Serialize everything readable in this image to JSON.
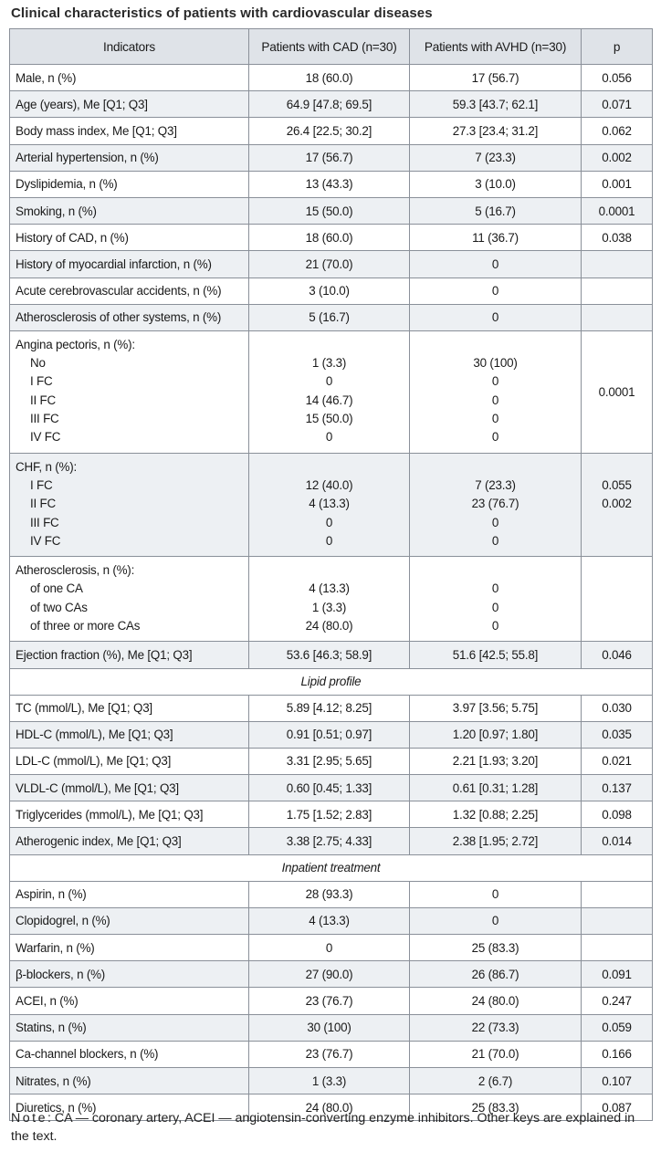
{
  "caption": "Clinical characteristics of patients with cardiovascular diseases",
  "headers": {
    "indicators": "Indicators",
    "cad": "Patients with CAD (n=30)",
    "avhd": "Patients with AVHD (n=30)",
    "p": "p"
  },
  "rows": [
    {
      "label": "Male, n (%)",
      "cad": "18 (60.0)",
      "avhd": "17 (56.7)",
      "p": "0.056"
    },
    {
      "label": "Age (years), Me [Q1; Q3]",
      "cad": "64.9 [47.8; 69.5]",
      "avhd": "59.3 [43.7; 62.1]",
      "p": "0.071"
    },
    {
      "label": "Body mass index, Me [Q1; Q3]",
      "cad": "26.4 [22.5; 30.2]",
      "avhd": "27.3 [23.4; 31.2]",
      "p": "0.062"
    },
    {
      "label": "Arterial hypertension, n (%)",
      "cad": "17 (56.7)",
      "avhd": "7 (23.3)",
      "p": "0.002"
    },
    {
      "label": "Dyslipidemia, n (%)",
      "cad": "13 (43.3)",
      "avhd": "3 (10.0)",
      "p": "0.001"
    },
    {
      "label": "Smoking, n (%)",
      "cad": "15 (50.0)",
      "avhd": "5 (16.7)",
      "p": "0.0001"
    },
    {
      "label": "History of CAD, n (%)",
      "cad": "18 (60.0)",
      "avhd": "11 (36.7)",
      "p": "0.038"
    },
    {
      "label": "History of myocardial infarction, n (%)",
      "cad": "21 (70.0)",
      "avhd": "0",
      "p": ""
    },
    {
      "label": "Acute cerebrovascular accidents, n (%)",
      "cad": "3 (10.0)",
      "avhd": "0",
      "p": ""
    },
    {
      "label": "Atherosclerosis of other systems, n (%)",
      "cad": "5 (16.7)",
      "avhd": "0",
      "p": ""
    }
  ],
  "angina": {
    "title": "Angina pectoris, n (%):",
    "items": [
      {
        "label": "No",
        "cad": "1 (3.3)",
        "avhd": "30 (100)"
      },
      {
        "label": "I FC",
        "cad": "0",
        "avhd": "0"
      },
      {
        "label": "II FC",
        "cad": "14 (46.7)",
        "avhd": "0"
      },
      {
        "label": "III FC",
        "cad": "15 (50.0)",
        "avhd": "0"
      },
      {
        "label": "IV FC",
        "cad": "0",
        "avhd": "0"
      }
    ],
    "p": "0.0001"
  },
  "chf": {
    "title": "CHF, n (%):",
    "items": [
      {
        "label": "I FC",
        "cad": "12 (40.0)",
        "avhd": "7 (23.3)"
      },
      {
        "label": "II FC",
        "cad": "4 (13.3)",
        "avhd": "23 (76.7)"
      },
      {
        "label": "III FC",
        "cad": "0",
        "avhd": "0"
      },
      {
        "label": "IV FC",
        "cad": "0",
        "avhd": "0"
      }
    ],
    "p1": "0.055",
    "p2": "0.002"
  },
  "athero": {
    "title": "Atherosclerosis, n (%):",
    "items": [
      {
        "label": "of one CA",
        "cad": "4 (13.3)",
        "avhd": "0"
      },
      {
        "label": "of two CAs",
        "cad": "1 (3.3)",
        "avhd": "0"
      },
      {
        "label": "of three or more CAs",
        "cad": "24 (80.0)",
        "avhd": "0"
      }
    ]
  },
  "ef": {
    "label": "Ejection fraction (%), Me [Q1; Q3]",
    "cad": "53.6 [46.3; 58.9]",
    "avhd": "51.6 [42.5; 55.8]",
    "p": "0.046"
  },
  "lipid_title": "Lipid profile",
  "lipid_rows": [
    {
      "label": "TC (mmol/L), Me [Q1; Q3]",
      "cad": "5.89 [4.12; 8.25]",
      "avhd": "3.97 [3.56; 5.75]",
      "p": "0.030"
    },
    {
      "label": "HDL-C (mmol/L), Me [Q1; Q3]",
      "cad": "0.91 [0.51; 0.97]",
      "avhd": "1.20 [0.97; 1.80]",
      "p": "0.035"
    },
    {
      "label": "LDL-C (mmol/L), Me [Q1; Q3]",
      "cad": "3.31 [2.95; 5.65]",
      "avhd": "2.21 [1.93; 3.20]",
      "p": "0.021"
    },
    {
      "label": "VLDL-C (mmol/L), Me [Q1; Q3]",
      "cad": "0.60 [0.45; 1.33]",
      "avhd": "0.61 [0.31; 1.28]",
      "p": "0.137"
    },
    {
      "label": "Triglycerides (mmol/L), Me [Q1; Q3]",
      "cad": "1.75 [1.52; 2.83]",
      "avhd": "1.32 [0.88; 2.25]",
      "p": "0.098"
    },
    {
      "label": "Atherogenic index, Me [Q1; Q3]",
      "cad": "3.38 [2.75; 4.33]",
      "avhd": "2.38 [1.95; 2.72]",
      "p": "0.014"
    }
  ],
  "treat_title": "Inpatient treatment",
  "treat_rows": [
    {
      "label": "Aspirin, n (%)",
      "cad": "28 (93.3)",
      "avhd": "0",
      "p": ""
    },
    {
      "label": "Clopidogrel, n (%)",
      "cad": "4 (13.3)",
      "avhd": "0",
      "p": ""
    },
    {
      "label": "Warfarin, n (%)",
      "cad": "0",
      "avhd": "25 (83.3)",
      "p": ""
    },
    {
      "label": "β-blockers, n (%)",
      "cad": "27 (90.0)",
      "avhd": "26 (86.7)",
      "p": "0.091"
    },
    {
      "label": "ACEI, n (%)",
      "cad": "23 (76.7)",
      "avhd": "24 (80.0)",
      "p": "0.247"
    },
    {
      "label": "Statins, n (%)",
      "cad": "30 (100)",
      "avhd": "22 (73.3)",
      "p": "0.059"
    },
    {
      "label": "Ca-channel blockers, n (%)",
      "cad": "23 (76.7)",
      "avhd": "21 (70.0)",
      "p": "0.166"
    },
    {
      "label": "Nitrates, n (%)",
      "cad": "1 (3.3)",
      "avhd": "2 (6.7)",
      "p": "0.107"
    },
    {
      "label": "Diuretics, n (%)",
      "cad": "24 (80.0)",
      "avhd": "25 (83.3)",
      "p": "0.087"
    }
  ],
  "note": {
    "prefix": "Note",
    "text": ": CA — coronary artery, ACEI — angiotensin-converting enzyme inhibitors. Other keys are explained in the text."
  }
}
